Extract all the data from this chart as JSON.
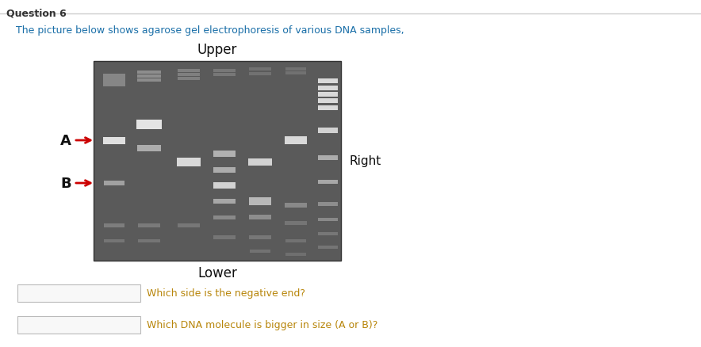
{
  "title": "Question 6",
  "subtitle": "The picture below shows agarose gel electrophoresis of various DNA samples,",
  "subtitle_color": "#1a6fa8",
  "title_color": "#333333",
  "upper_label": "Upper",
  "lower_label": "Lower",
  "right_label": "Right",
  "label_A": "A",
  "label_B": "B",
  "question1": "Which side is the negative end?",
  "question2": "Which DNA molecule is bigger in size (A or B)?",
  "question_color": "#b8860b",
  "bg_color": "#ffffff",
  "arrow_color": "#cc0000",
  "border_color": "#cccccc"
}
